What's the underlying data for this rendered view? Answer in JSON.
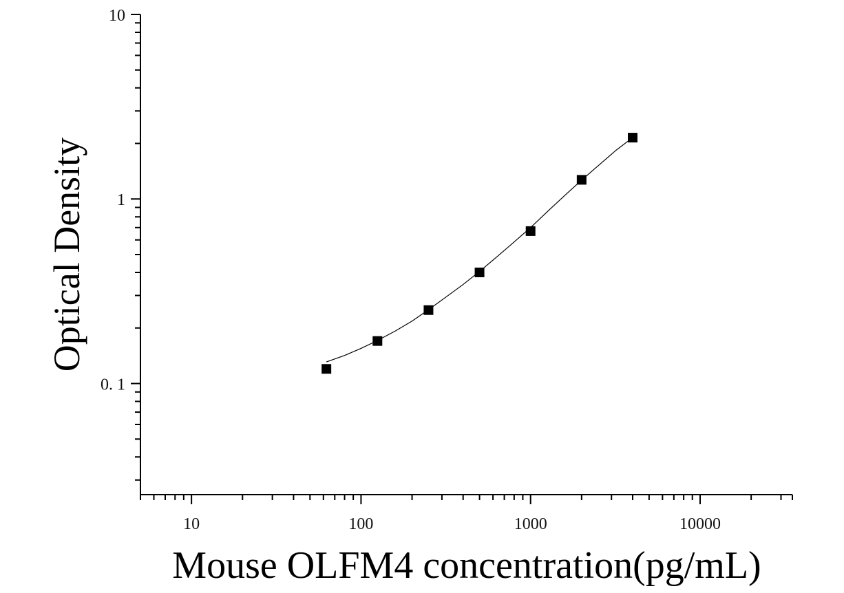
{
  "chart_data": {
    "type": "scatter",
    "title": "",
    "xlabel": "Mouse OLFM4 concentration(pg/mL)",
    "ylabel": "Optical Density",
    "x_scale": "log",
    "y_scale": "log",
    "xlim": [
      5,
      35000
    ],
    "ylim": [
      0.025,
      10
    ],
    "grid": false,
    "x_ticks": [
      {
        "value": 10,
        "label": "10"
      },
      {
        "value": 100,
        "label": "100"
      },
      {
        "value": 1000,
        "label": "1000"
      },
      {
        "value": 10000,
        "label": "10000"
      }
    ],
    "y_ticks": [
      {
        "value": 0.1,
        "label": "0. 1"
      },
      {
        "value": 1,
        "label": "1"
      },
      {
        "value": 10,
        "label": "10"
      }
    ],
    "series": [
      {
        "marker": "square",
        "color": "#000000",
        "x": [
          62.5,
          125,
          250,
          500,
          1000,
          2000,
          4000
        ],
        "y": [
          0.12,
          0.17,
          0.25,
          0.4,
          0.67,
          1.27,
          2.15
        ]
      }
    ],
    "fit_curve": {
      "color": "#000000",
      "x": [
        62.5,
        80,
        100,
        125,
        160,
        200,
        250,
        320,
        400,
        500,
        640,
        800,
        1000,
        1300,
        1600,
        2000,
        2600,
        3200,
        4000
      ],
      "y": [
        0.131,
        0.142,
        0.155,
        0.171,
        0.193,
        0.218,
        0.251,
        0.296,
        0.344,
        0.405,
        0.49,
        0.585,
        0.7,
        0.88,
        1.05,
        1.265,
        1.56,
        1.84,
        2.15
      ]
    }
  }
}
